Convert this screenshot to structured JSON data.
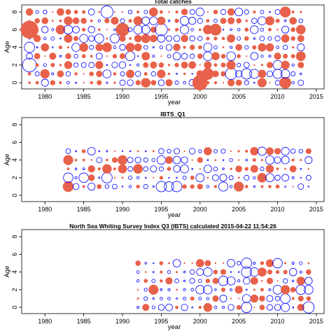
{
  "colors": {
    "positive": "#e8614a",
    "negative": "#0000ff",
    "frame": "#000000"
  },
  "chart_data": [
    {
      "type": "scatter",
      "title": "Total catches",
      "xlabel": "year",
      "ylabel": "Age",
      "xlim": [
        1977,
        2016
      ],
      "ylim": [
        -0.7,
        8.8
      ],
      "xticks": [
        "1980",
        "1985",
        "1990",
        "1995",
        "2000",
        "2005",
        "2010",
        "2015"
      ],
      "yticks": [
        "0",
        "2",
        "4",
        "6",
        "8"
      ],
      "encoding": "bubble size = residual magnitude; filled = positive, open = negative",
      "years": [
        1978,
        2013
      ],
      "ages": [
        0,
        8
      ],
      "pos_prob": 0.55,
      "seed": 11,
      "anchors": [
        {
          "x": 1978,
          "y": 6,
          "r": 2.0,
          "pos": true
        },
        {
          "x": 1978,
          "y": 2,
          "r": 1.6,
          "pos": false
        },
        {
          "x": 1978,
          "y": 4,
          "r": 1.2,
          "pos": false
        },
        {
          "x": 1988,
          "y": 8,
          "r": 1.4,
          "pos": false
        },
        {
          "x": 1990,
          "y": 6,
          "r": 1.5,
          "pos": true
        },
        {
          "x": 1995,
          "y": 6,
          "r": 1.4,
          "pos": false
        },
        {
          "x": 2000,
          "y": 0,
          "r": 1.7,
          "pos": true
        },
        {
          "x": 2001,
          "y": 1,
          "r": 1.3,
          "pos": true
        },
        {
          "x": 2002,
          "y": 6,
          "r": 1.3,
          "pos": true
        },
        {
          "x": 2004,
          "y": 1,
          "r": 1.3,
          "pos": false
        },
        {
          "x": 2006,
          "y": 1,
          "r": 1.2,
          "pos": false
        },
        {
          "x": 2011,
          "y": 0,
          "r": 1.3,
          "pos": true
        },
        {
          "x": 2011,
          "y": 8,
          "r": 1.2,
          "pos": true
        }
      ]
    },
    {
      "type": "scatter",
      "title": "IBTS_Q1",
      "xlabel": "year",
      "ylabel": "Age",
      "xlim": [
        1977,
        2016
      ],
      "ylim": [
        -0.7,
        8.8
      ],
      "xticks": [
        "1980",
        "1985",
        "1990",
        "1995",
        "2000",
        "2005",
        "2010",
        "2015"
      ],
      "yticks": [
        "0",
        "2",
        "4",
        "6",
        "8"
      ],
      "encoding": "bubble size = residual magnitude; filled = positive, open = negative",
      "years": [
        1983,
        2014
      ],
      "ages": [
        1,
        5
      ],
      "pos_prob": 0.5,
      "seed": 23,
      "anchors": [
        {
          "x": 1983,
          "y": 1,
          "r": 1.2,
          "pos": true
        },
        {
          "x": 1983,
          "y": 2,
          "r": 1.1,
          "pos": false
        },
        {
          "x": 1983,
          "y": 4,
          "r": 1.1,
          "pos": true
        },
        {
          "x": 1985,
          "y": 2,
          "r": 1.1,
          "pos": false
        },
        {
          "x": 1988,
          "y": 2,
          "r": 1.2,
          "pos": false
        },
        {
          "x": 1995,
          "y": 1,
          "r": 1.2,
          "pos": false
        },
        {
          "x": 1996,
          "y": 1,
          "r": 1.1,
          "pos": false
        },
        {
          "x": 1997,
          "y": 1,
          "r": 1.2,
          "pos": false
        },
        {
          "x": 2005,
          "y": 1,
          "r": 1.1,
          "pos": true
        }
      ]
    },
    {
      "type": "scatter",
      "title": "North Sea Whiting Survey Index Q3 (IBTS) calculated 2015-04-22 11:54:26",
      "xlabel": "year",
      "ylabel": "Age",
      "xlim": [
        1977,
        2016
      ],
      "ylim": [
        -0.7,
        8.8
      ],
      "xticks": [
        "1980",
        "1985",
        "1990",
        "1995",
        "2000",
        "2005",
        "2010",
        "2015"
      ],
      "yticks": [
        "0",
        "2",
        "4",
        "6",
        "8"
      ],
      "encoding": "bubble size = residual magnitude; filled = positive, open = negative",
      "years": [
        1992,
        2014
      ],
      "ages": [
        0,
        5
      ],
      "pos_prob": 0.5,
      "seed": 37,
      "anchors": [
        {
          "x": 2006,
          "y": 5,
          "r": 1.2,
          "pos": false
        },
        {
          "x": 2006,
          "y": 4,
          "r": 1.2,
          "pos": false
        },
        {
          "x": 2006,
          "y": 0,
          "r": 1.2,
          "pos": false
        },
        {
          "x": 2003,
          "y": 3,
          "r": 1.1,
          "pos": false
        },
        {
          "x": 2010,
          "y": 5,
          "r": 1.1,
          "pos": false
        },
        {
          "x": 2011,
          "y": 1,
          "r": 1.1,
          "pos": false
        },
        {
          "x": 2013,
          "y": 2,
          "r": 1.1,
          "pos": false
        },
        {
          "x": 2014,
          "y": 0,
          "r": 1.3,
          "pos": false
        },
        {
          "x": 1994,
          "y": 2,
          "r": 1.1,
          "pos": true
        }
      ]
    }
  ]
}
